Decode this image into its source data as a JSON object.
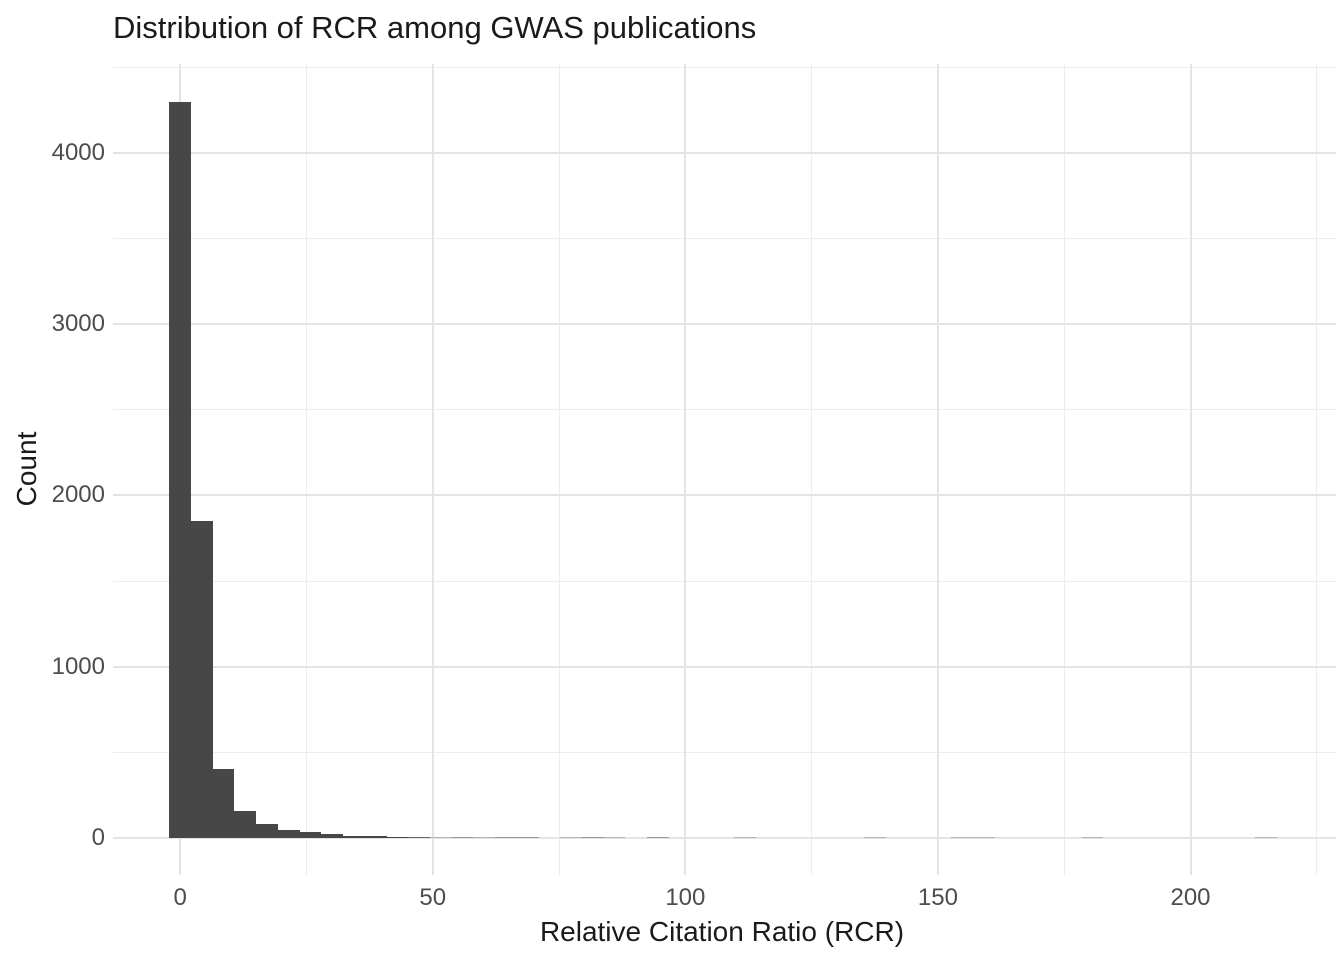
{
  "title": "Distribution of RCR among GWAS publications",
  "colors": {
    "background": "#ffffff",
    "bar": "#474747",
    "grid_major": "#e4e4e4",
    "grid_minor": "#ededed",
    "tick_label": "#4d4d4d",
    "title": "#1a1a1a"
  },
  "chart_data": {
    "type": "bar",
    "subtype": "histogram",
    "title": "Distribution of RCR among GWAS publications",
    "xlabel": "Relative Citation Ratio (RCR)",
    "ylabel": "Count",
    "xlim": [
      -13.3,
      228.8
    ],
    "ylim": [
      -216,
      4519
    ],
    "x_ticks": [
      0,
      50,
      100,
      150,
      200
    ],
    "x_minor_ticks": [
      25,
      75,
      125,
      175,
      225
    ],
    "y_ticks": [
      0,
      1000,
      2000,
      3000,
      4000
    ],
    "y_minor_ticks": [
      500,
      1500,
      2500,
      3500,
      4500
    ],
    "grid": true,
    "legend": false,
    "bin_start": -2.15,
    "bin_width": 4.3,
    "counts": [
      4300,
      1850,
      400,
      158,
      80,
      45,
      33,
      21,
      14,
      9,
      7,
      3,
      1,
      2,
      1,
      2,
      2,
      0,
      1,
      2,
      1,
      0,
      2,
      0,
      0,
      0,
      1,
      0,
      0,
      0,
      0,
      0,
      1,
      0,
      0,
      0,
      1,
      1,
      0,
      0,
      0,
      0,
      1,
      0,
      0,
      0,
      0,
      0,
      0,
      0,
      1
    ]
  }
}
